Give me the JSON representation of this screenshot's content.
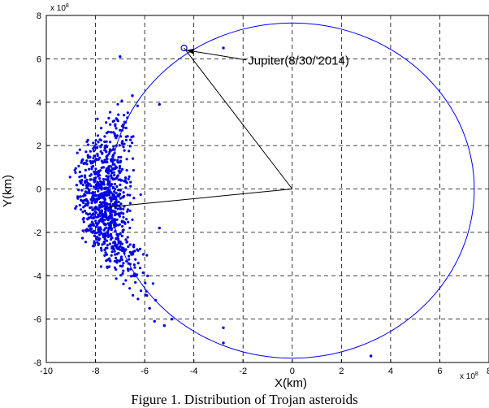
{
  "chart_data": {
    "type": "scatter",
    "xlabel": "X(km)",
    "ylabel": "Y(km)",
    "x_exponent_label": "x 10",
    "x_exponent_power": "8",
    "y_exponent_label": "x 10",
    "y_exponent_power": "8",
    "x_ticks": [
      "-10",
      "-8",
      "-6",
      "-4",
      "-2",
      "0",
      "2",
      "4",
      "6",
      "8"
    ],
    "y_ticks": [
      "8",
      "6",
      "4",
      "2",
      "0",
      "-2",
      "-4",
      "-6",
      "-8"
    ],
    "xlim": [
      -10,
      8
    ],
    "ylim": [
      -8,
      8
    ],
    "grid": true,
    "orbit": {
      "center": [
        0,
        0
      ],
      "semi_x": 7.4,
      "semi_y_top": 7.65,
      "semi_y_bottom": 7.8
    },
    "jupiter": {
      "x": -4.4,
      "y": 6.5
    },
    "pointer_lines": [
      {
        "from": [
          0,
          0
        ],
        "to": [
          -4.4,
          6.5
        ]
      },
      {
        "from": [
          0,
          0
        ],
        "to": [
          -7.6,
          -0.85
        ]
      }
    ],
    "annotation": {
      "text": "Jupiter(8/30/'2014)",
      "x": -1.8,
      "y": 5.8,
      "arrow_to": [
        -4.3,
        6.4
      ]
    },
    "cluster": {
      "center": [
        -7.6,
        -0.5
      ],
      "y_range": [
        -6.2,
        4.2
      ],
      "count": 900
    },
    "outliers": [
      {
        "x": -7.0,
        "y": 6.1
      },
      {
        "x": -2.8,
        "y": 6.5
      },
      {
        "x": -5.4,
        "y": 3.9
      },
      {
        "x": -5.4,
        "y": -1.8
      },
      {
        "x": -5.6,
        "y": -6.1
      },
      {
        "x": -2.8,
        "y": -6.4
      },
      {
        "x": -2.8,
        "y": -7.1
      },
      {
        "x": 3.2,
        "y": -7.7
      },
      {
        "x": -6.5,
        "y": 4.3
      },
      {
        "x": -5.8,
        "y": -5.5
      },
      {
        "x": -5.2,
        "y": -6.3
      },
      {
        "x": -4.9,
        "y": -6.0
      }
    ],
    "colors": {
      "points": "#0000e6",
      "orbit": "#0000ff",
      "grid": "#000000",
      "lines": "#000000"
    }
  },
  "caption": "Figure 1. Distribution of Trojan asteroids"
}
